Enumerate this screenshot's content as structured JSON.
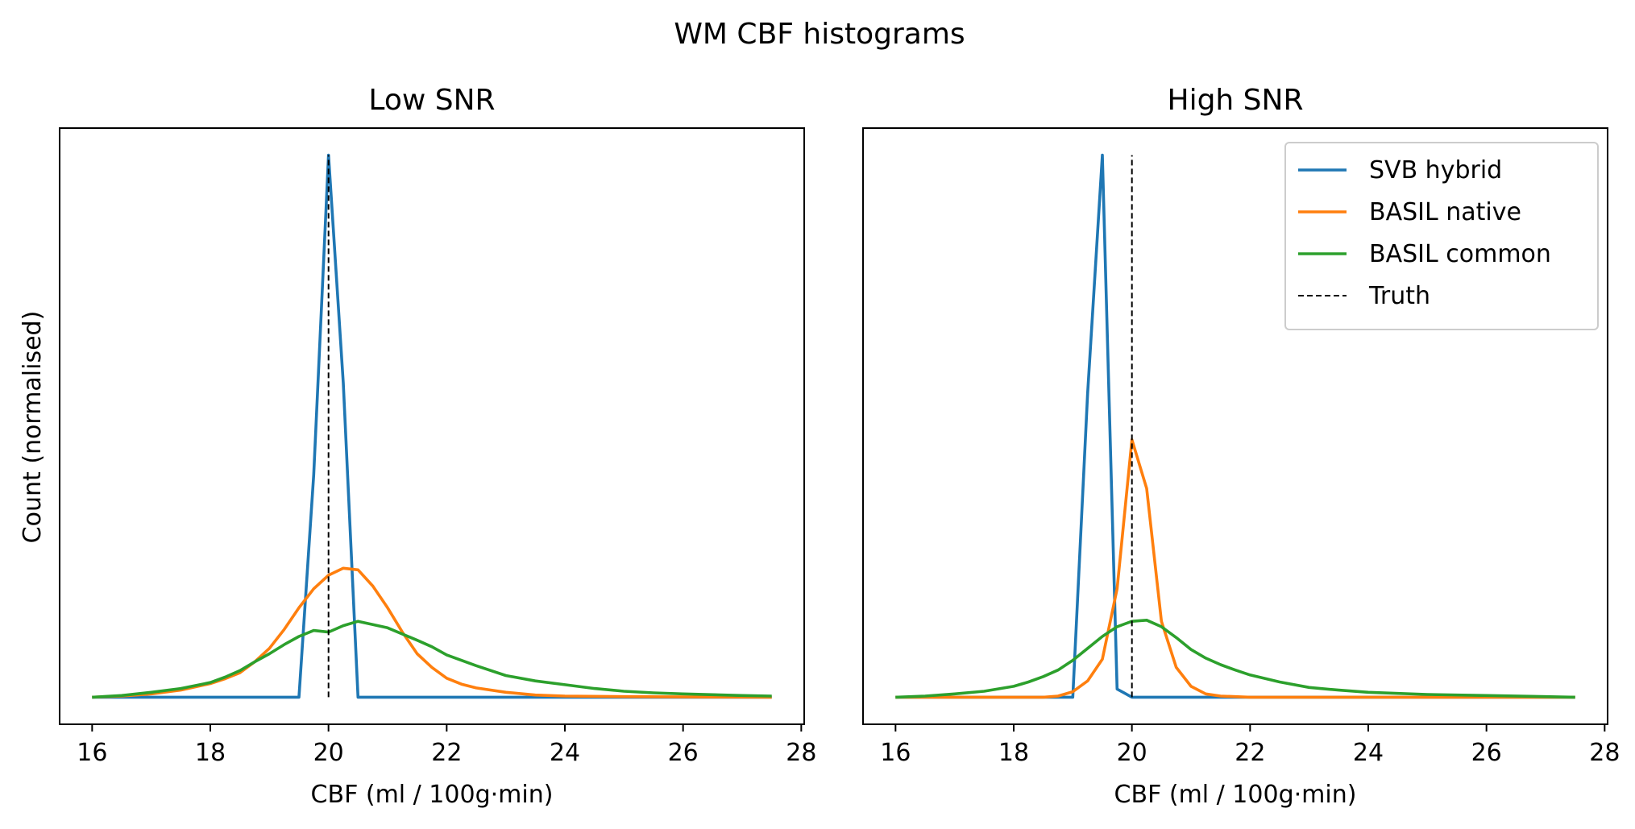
{
  "figure": {
    "title": "WM CBF histograms",
    "ylabel": "Count (normalised)"
  },
  "chart_data": [
    {
      "type": "line",
      "title": "Low SNR",
      "xlabel": "CBF (ml / 100g·min)",
      "ylabel": "Count (normalised)",
      "xlim": [
        15.45,
        28.05
      ],
      "ylim": [
        -0.05,
        1.05
      ],
      "xticks": [
        "16",
        "18",
        "20",
        "22",
        "24",
        "26",
        "28"
      ],
      "grid": false,
      "series": [
        {
          "name": "SVB hybrid",
          "color": "#1f77b4",
          "x": [
            16.0,
            19.5,
            19.75,
            20.0,
            20.25,
            20.5,
            27.5
          ],
          "y": [
            0.0,
            0.0,
            0.41,
            1.0,
            0.58,
            0.0,
            0.0
          ]
        },
        {
          "name": "BASIL native",
          "color": "#ff7f0e",
          "x": [
            16.0,
            16.5,
            17.0,
            17.5,
            18.0,
            18.25,
            18.5,
            18.75,
            19.0,
            19.25,
            19.5,
            19.75,
            20.0,
            20.25,
            20.5,
            20.75,
            21.0,
            21.25,
            21.5,
            21.75,
            22.0,
            22.25,
            22.5,
            23.0,
            23.5,
            24.0,
            25.0,
            27.5
          ],
          "y": [
            0.0,
            0.002,
            0.006,
            0.013,
            0.025,
            0.034,
            0.045,
            0.065,
            0.09,
            0.125,
            0.165,
            0.2,
            0.225,
            0.238,
            0.235,
            0.205,
            0.165,
            0.12,
            0.08,
            0.055,
            0.035,
            0.024,
            0.017,
            0.009,
            0.004,
            0.002,
            0.001,
            0.0
          ]
        },
        {
          "name": "BASIL common",
          "color": "#2ca02c",
          "x": [
            16.0,
            16.5,
            17.0,
            17.5,
            18.0,
            18.25,
            18.5,
            18.75,
            19.0,
            19.25,
            19.5,
            19.75,
            20.0,
            20.25,
            20.5,
            21.0,
            21.5,
            21.75,
            22.0,
            22.5,
            23.0,
            23.5,
            24.0,
            24.5,
            25.0,
            25.5,
            26.0,
            27.0,
            27.5
          ],
          "y": [
            0.0,
            0.003,
            0.009,
            0.016,
            0.027,
            0.037,
            0.049,
            0.065,
            0.08,
            0.097,
            0.112,
            0.123,
            0.12,
            0.132,
            0.14,
            0.128,
            0.105,
            0.093,
            0.078,
            0.058,
            0.04,
            0.03,
            0.023,
            0.016,
            0.011,
            0.008,
            0.006,
            0.003,
            0.002
          ]
        },
        {
          "name": "Truth",
          "color": "#000000",
          "dashed": true,
          "x": [
            20.0,
            20.0
          ],
          "y": [
            0.0,
            1.0
          ]
        }
      ]
    },
    {
      "type": "line",
      "title": "High SNR",
      "xlabel": "CBF (ml / 100g·min)",
      "ylabel": "",
      "xlim": [
        15.45,
        28.05
      ],
      "ylim": [
        -0.05,
        1.05
      ],
      "xticks": [
        "16",
        "18",
        "20",
        "22",
        "24",
        "26",
        "28"
      ],
      "grid": false,
      "legend": "top-right",
      "series": [
        {
          "name": "SVB hybrid",
          "color": "#1f77b4",
          "x": [
            16.0,
            19.0,
            19.25,
            19.5,
            19.75,
            20.0,
            27.5
          ],
          "y": [
            0.0,
            0.0,
            0.56,
            1.0,
            0.015,
            0.0,
            0.0
          ]
        },
        {
          "name": "BASIL native",
          "color": "#ff7f0e",
          "x": [
            16.0,
            18.5,
            18.75,
            19.0,
            19.25,
            19.5,
            19.75,
            20.0,
            20.25,
            20.5,
            20.75,
            21.0,
            21.25,
            21.5,
            22.0,
            27.5
          ],
          "y": [
            0.0,
            0.0,
            0.002,
            0.01,
            0.03,
            0.07,
            0.2,
            0.475,
            0.385,
            0.14,
            0.055,
            0.02,
            0.006,
            0.002,
            0.0,
            0.0
          ]
        },
        {
          "name": "BASIL common",
          "color": "#2ca02c",
          "x": [
            16.0,
            16.5,
            17.0,
            17.5,
            18.0,
            18.25,
            18.5,
            18.75,
            19.0,
            19.25,
            19.5,
            19.75,
            20.0,
            20.25,
            20.5,
            20.75,
            21.0,
            21.25,
            21.5,
            21.75,
            22.0,
            22.5,
            23.0,
            23.5,
            24.0,
            24.5,
            25.0,
            26.0,
            27.0,
            27.5
          ],
          "y": [
            0.0,
            0.002,
            0.006,
            0.011,
            0.02,
            0.028,
            0.038,
            0.05,
            0.068,
            0.09,
            0.112,
            0.13,
            0.14,
            0.142,
            0.13,
            0.11,
            0.088,
            0.072,
            0.06,
            0.05,
            0.041,
            0.028,
            0.018,
            0.013,
            0.009,
            0.007,
            0.005,
            0.003,
            0.001,
            0.0
          ]
        },
        {
          "name": "Truth",
          "color": "#000000",
          "dashed": true,
          "x": [
            20.0,
            20.0
          ],
          "y": [
            0.0,
            1.0
          ]
        }
      ]
    }
  ]
}
